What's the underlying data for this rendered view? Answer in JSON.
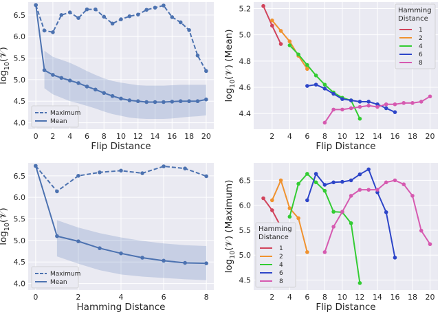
{
  "chart_data": [
    {
      "type": "line",
      "xlabel": "Flip Distance",
      "ylabel": "log10(V)",
      "xlim": [
        -0.9,
        20.9
      ],
      "ylim": [
        3.85,
        6.8
      ],
      "xticks": [
        0,
        2,
        4,
        6,
        8,
        10,
        12,
        14,
        16,
        18,
        20
      ],
      "yticks": [
        4.0,
        4.5,
        5.0,
        5.5,
        6.0,
        6.5
      ],
      "ytick_decimals": 1,
      "grid": true,
      "legend_position": "lower-left",
      "color": "#4c72b0",
      "series": [
        {
          "name": "Maximum",
          "style": "dashed",
          "x": [
            0,
            1,
            2,
            3,
            4,
            5,
            6,
            7,
            8,
            9,
            10,
            11,
            12,
            13,
            14,
            15,
            16,
            17,
            18,
            19,
            20
          ],
          "y": [
            6.73,
            6.14,
            6.1,
            6.5,
            6.56,
            6.43,
            6.63,
            6.63,
            6.46,
            6.3,
            6.4,
            6.47,
            6.51,
            6.62,
            6.67,
            6.72,
            6.45,
            6.33,
            6.15,
            5.56,
            5.2
          ]
        },
        {
          "name": "Mean",
          "style": "solid",
          "x": [
            0,
            1,
            2,
            3,
            4,
            5,
            6,
            7,
            8,
            9,
            10,
            11,
            12,
            13,
            14,
            15,
            16,
            17,
            18,
            19,
            20
          ],
          "y": [
            6.73,
            5.22,
            5.11,
            5.04,
            4.98,
            4.92,
            4.84,
            4.77,
            4.69,
            4.62,
            4.56,
            4.52,
            4.5,
            4.48,
            4.48,
            4.48,
            4.49,
            4.5,
            4.5,
            4.5,
            4.54
          ]
        }
      ],
      "band": {
        "x": [
          1,
          2,
          3,
          4,
          5,
          6,
          7,
          8,
          9,
          10,
          11,
          12,
          13,
          14,
          15,
          16,
          17,
          18,
          19,
          20
        ],
        "lower": [
          4.8,
          4.66,
          4.58,
          4.5,
          4.45,
          4.39,
          4.33,
          4.26,
          4.2,
          4.16,
          4.12,
          4.1,
          4.09,
          4.09,
          4.09,
          4.1,
          4.12,
          4.14,
          4.15,
          4.17
        ],
        "upper": [
          5.67,
          5.53,
          5.46,
          5.39,
          5.3,
          5.2,
          5.11,
          5.03,
          4.97,
          4.93,
          4.9,
          4.87,
          4.86,
          4.86,
          4.86,
          4.87,
          4.88,
          4.88,
          4.88,
          4.88
        ]
      }
    },
    {
      "type": "line",
      "xlabel": "Flip Distance",
      "ylabel": "log10(V) (Mean)",
      "xlim": [
        -0.1,
        20.9
      ],
      "ylim": [
        4.28,
        5.25
      ],
      "xticks": [
        2,
        4,
        6,
        8,
        10,
        12,
        14,
        16,
        18,
        20
      ],
      "yticks": [
        4.4,
        4.6,
        4.8,
        5.0,
        5.2
      ],
      "ytick_decimals": 1,
      "grid": true,
      "legend_position": "top-right",
      "legend_title": [
        "Hamming",
        "Distance"
      ],
      "series": [
        {
          "name": "1",
          "color": "#d1435b",
          "x": [
            1,
            2,
            3
          ],
          "y": [
            5.22,
            5.07,
            4.93
          ]
        },
        {
          "name": "2",
          "color": "#f0922e",
          "x": [
            2,
            3,
            4,
            5,
            6
          ],
          "y": [
            5.11,
            5.03,
            4.95,
            4.84,
            4.74
          ]
        },
        {
          "name": "4",
          "color": "#33cc33",
          "x": [
            4,
            5,
            6,
            7,
            8,
            9,
            10,
            11,
            12
          ],
          "y": [
            4.92,
            4.85,
            4.77,
            4.69,
            4.62,
            4.56,
            4.52,
            4.5,
            4.36
          ]
        },
        {
          "name": "6",
          "color": "#2d45c8",
          "x": [
            6,
            7,
            8,
            9,
            10,
            11,
            12,
            13,
            14,
            15,
            16
          ],
          "y": [
            4.61,
            4.62,
            4.59,
            4.55,
            4.51,
            4.5,
            4.49,
            4.49,
            4.47,
            4.44,
            4.41
          ]
        },
        {
          "name": "8",
          "color": "#d65ab0",
          "x": [
            8,
            9,
            10,
            11,
            12,
            13,
            14,
            15,
            16,
            17,
            18,
            19,
            20
          ],
          "y": [
            4.33,
            4.43,
            4.43,
            4.44,
            4.45,
            4.46,
            4.45,
            4.47,
            4.47,
            4.48,
            4.48,
            4.49,
            4.53
          ]
        }
      ]
    },
    {
      "type": "line",
      "xlabel": "Hamming Distance",
      "ylabel": "log10(V)",
      "xlim": [
        -0.35,
        8.35
      ],
      "ylim": [
        3.85,
        6.8
      ],
      "xticks": [
        0,
        2,
        4,
        6,
        8
      ],
      "yticks": [
        4.0,
        4.5,
        5.0,
        5.5,
        6.0,
        6.5
      ],
      "ytick_decimals": 1,
      "grid": true,
      "legend_position": "lower-left",
      "color": "#4c72b0",
      "series": [
        {
          "name": "Maximum",
          "style": "dashed",
          "x": [
            0,
            1,
            2,
            3,
            4,
            5,
            6,
            7,
            8
          ],
          "y": [
            6.73,
            6.14,
            6.5,
            6.58,
            6.62,
            6.56,
            6.72,
            6.67,
            6.49
          ]
        },
        {
          "name": "Mean",
          "style": "solid",
          "x": [
            0,
            1,
            2,
            3,
            4,
            5,
            6,
            7,
            8
          ],
          "y": [
            6.73,
            5.1,
            4.98,
            4.82,
            4.7,
            4.6,
            4.53,
            4.48,
            4.47
          ]
        }
      ],
      "band": {
        "x": [
          1,
          2,
          3,
          4,
          5,
          6,
          7,
          8
        ],
        "lower": [
          4.63,
          4.46,
          4.31,
          4.21,
          4.16,
          4.13,
          4.1,
          4.08
        ],
        "upper": [
          5.47,
          5.3,
          5.17,
          5.07,
          4.99,
          4.93,
          4.89,
          4.87
        ]
      }
    },
    {
      "type": "line",
      "xlabel": "Flip Distance",
      "ylabel": "log10(V) (Maximum)",
      "xlim": [
        -0.1,
        20.9
      ],
      "ylim": [
        4.3,
        6.85
      ],
      "xticks": [
        2,
        4,
        6,
        8,
        10,
        12,
        14,
        16,
        18,
        20
      ],
      "yticks": [
        4.5,
        5.0,
        5.5,
        6.0,
        6.5
      ],
      "ytick_decimals": 1,
      "grid": true,
      "legend_position": "lower-left",
      "legend_title": [
        "Hamming",
        "Distance"
      ],
      "series": [
        {
          "name": "1",
          "color": "#d1435b",
          "x": [
            1,
            2,
            3
          ],
          "y": [
            6.14,
            5.9,
            5.57
          ]
        },
        {
          "name": "2",
          "color": "#f0922e",
          "x": [
            2,
            3,
            4,
            5,
            6
          ],
          "y": [
            6.1,
            6.5,
            5.94,
            5.74,
            5.06
          ]
        },
        {
          "name": "4",
          "color": "#33cc33",
          "x": [
            4,
            5,
            6,
            7,
            8,
            9,
            10,
            11,
            12
          ],
          "y": [
            5.77,
            6.43,
            6.63,
            6.46,
            6.29,
            5.87,
            5.86,
            5.64,
            4.44
          ]
        },
        {
          "name": "6",
          "color": "#2d45c8",
          "x": [
            6,
            7,
            8,
            9,
            10,
            11,
            12,
            13,
            14,
            15,
            16
          ],
          "y": [
            6.1,
            6.63,
            6.41,
            6.46,
            6.47,
            6.5,
            6.62,
            6.72,
            6.26,
            5.86,
            4.95
          ]
        },
        {
          "name": "8",
          "color": "#d65ab0",
          "x": [
            8,
            9,
            10,
            11,
            12,
            13,
            14,
            15,
            16,
            17,
            18,
            19,
            20
          ],
          "y": [
            5.06,
            5.57,
            5.87,
            6.19,
            6.31,
            6.31,
            6.31,
            6.46,
            6.5,
            6.42,
            6.19,
            5.49,
            5.22
          ]
        }
      ]
    }
  ]
}
